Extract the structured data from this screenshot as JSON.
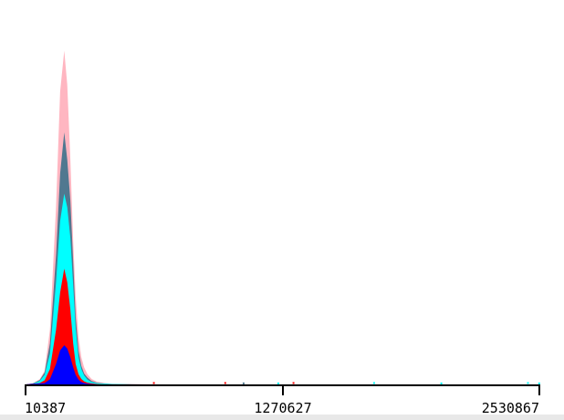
{
  "chart_data": {
    "type": "area",
    "title": "",
    "xlabel": "",
    "ylabel": "",
    "xlim": [
      10387,
      2530867
    ],
    "x_ticks": [
      "10387",
      "1270627",
      "2530867"
    ],
    "grid": false,
    "legend": "none",
    "series": [
      {
        "color": "#ffb6c1",
        "x": [
          10387,
          46000,
          80000,
          104000,
          130000,
          160000,
          180000,
          200000,
          215000,
          230000,
          244000,
          256000,
          270000,
          284000,
          298000,
          314000,
          334000,
          360000,
          395000,
          440000,
          520000,
          600000,
          700000
        ],
        "values": [
          0.0,
          0.003,
          0.015,
          0.04,
          0.16,
          0.52,
          0.86,
          0.98,
          0.88,
          0.66,
          0.42,
          0.26,
          0.14,
          0.08,
          0.05,
          0.03,
          0.016,
          0.008,
          0.004,
          0.002,
          0.001,
          0.0005,
          0.0
        ]
      },
      {
        "color": "#507890",
        "x": [
          10387,
          46000,
          80000,
          104000,
          130000,
          160000,
          180000,
          200000,
          215000,
          230000,
          244000,
          256000,
          270000,
          284000,
          298000,
          314000,
          334000,
          360000,
          395000,
          440000,
          520000,
          600000
        ],
        "values": [
          0.0,
          0.003,
          0.013,
          0.035,
          0.12,
          0.38,
          0.62,
          0.74,
          0.66,
          0.54,
          0.36,
          0.2,
          0.1,
          0.055,
          0.032,
          0.02,
          0.01,
          0.005,
          0.003,
          0.001,
          0.0005,
          0.0
        ]
      },
      {
        "color": "#00ffff",
        "x": [
          10387,
          46000,
          80000,
          104000,
          130000,
          160000,
          180000,
          200000,
          215000,
          230000,
          244000,
          256000,
          270000,
          284000,
          298000,
          314000,
          334000,
          360000,
          395000,
          440000,
          520000
        ],
        "values": [
          0.0,
          0.002,
          0.01,
          0.028,
          0.09,
          0.3,
          0.48,
          0.56,
          0.52,
          0.43,
          0.29,
          0.165,
          0.08,
          0.045,
          0.026,
          0.014,
          0.007,
          0.004,
          0.002,
          0.001,
          0.0
        ]
      },
      {
        "color": "#ff0000",
        "x": [
          10387,
          80000,
          104000,
          130000,
          160000,
          180000,
          200000,
          215000,
          230000,
          244000,
          256000,
          270000,
          284000,
          298000,
          314000,
          334000,
          360000,
          400000
        ],
        "values": [
          0.0,
          0.004,
          0.012,
          0.045,
          0.16,
          0.27,
          0.34,
          0.3,
          0.22,
          0.12,
          0.06,
          0.03,
          0.016,
          0.009,
          0.005,
          0.003,
          0.001,
          0.0
        ]
      },
      {
        "color": "#0000ff",
        "x": [
          10387,
          104000,
          130000,
          160000,
          180000,
          200000,
          215000,
          230000,
          244000,
          256000,
          270000,
          284000,
          298000,
          314000,
          334000,
          360000
        ],
        "values": [
          0.0,
          0.004,
          0.015,
          0.06,
          0.1,
          0.115,
          0.105,
          0.08,
          0.05,
          0.028,
          0.014,
          0.007,
          0.004,
          0.002,
          0.001,
          0.0
        ]
      }
    ],
    "scatter_marks": [
      {
        "x": 640000,
        "y": 0.004,
        "color": "#ff0000"
      },
      {
        "x": 990000,
        "y": 0.004,
        "color": "#ff0000"
      },
      {
        "x": 1080000,
        "y": 0.003,
        "color": "#507890"
      },
      {
        "x": 1250000,
        "y": 0.003,
        "color": "#00ffff"
      },
      {
        "x": 1325000,
        "y": 0.004,
        "color": "#ff0000"
      },
      {
        "x": 1720000,
        "y": 0.004,
        "color": "#00ffff"
      },
      {
        "x": 2050000,
        "y": 0.003,
        "color": "#00ffff"
      },
      {
        "x": 2475000,
        "y": 0.004,
        "color": "#00ffff"
      },
      {
        "x": 2530000,
        "y": 0.003,
        "color": "#00ffff"
      }
    ]
  }
}
